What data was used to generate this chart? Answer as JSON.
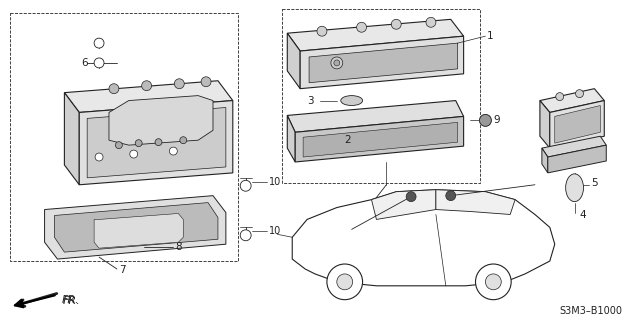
{
  "bg_color": "#ffffff",
  "line_color": "#222222",
  "text_color": "#222222",
  "watermark": "S3M3–B1000",
  "lw_main": 0.8,
  "lw_thin": 0.5,
  "hatch_color": "#aaaaaa",
  "gray_light": "#cccccc",
  "gray_dark": "#888888"
}
